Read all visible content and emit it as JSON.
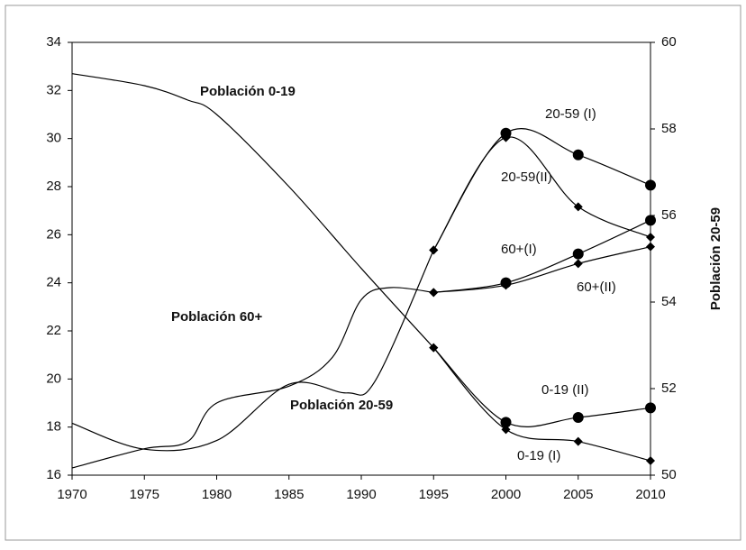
{
  "chart_data": {
    "type": "line",
    "y2label": "Población 20-59",
    "xlim": [
      1970,
      2010
    ],
    "xticks": [
      1970,
      1975,
      1980,
      1985,
      1990,
      1995,
      2000,
      2005,
      2010
    ],
    "ylim": [
      16,
      34
    ],
    "yticks": [
      16,
      18,
      20,
      22,
      24,
      26,
      28,
      30,
      32,
      34
    ],
    "y2lim": [
      50,
      60
    ],
    "y2ticks": [
      50,
      52,
      54,
      56,
      58,
      60
    ],
    "series": [
      {
        "name": "Población 0-19",
        "color": "#000000",
        "marker": null,
        "x": [
          1970,
          1975,
          1978,
          1980,
          1985,
          1990,
          1995
        ],
        "values": [
          32.7,
          32.2,
          31.6,
          31.0,
          28.0,
          24.6,
          21.3
        ]
      },
      {
        "name": "Población 60+",
        "color": "#000000",
        "marker": null,
        "x": [
          1970,
          1975,
          1978,
          1980,
          1985,
          1988,
          1990,
          1992,
          1995
        ],
        "values": [
          16.3,
          17.1,
          17.4,
          19.0,
          19.7,
          20.9,
          23.3,
          23.8,
          23.6
        ]
      },
      {
        "name": "Población 20-59",
        "color": "#000000",
        "marker": null,
        "axis": "y2",
        "x": [
          1970,
          1975,
          1980,
          1985,
          1989,
          1991,
          1995
        ],
        "values": [
          51.2,
          50.6,
          50.8,
          52.1,
          51.9,
          52.2,
          55.2
        ]
      },
      {
        "name": "20-59 (I)",
        "color": "#000000",
        "marker": "circle",
        "axis": "y2",
        "x": [
          1995,
          2000,
          2005,
          2010
        ],
        "values": [
          55.2,
          57.9,
          57.4,
          56.7
        ]
      },
      {
        "name": "20-59(II)",
        "color": "#000000",
        "marker": "diamond",
        "axis": "y2",
        "x": [
          1995,
          2000,
          2005,
          2010
        ],
        "values": [
          55.2,
          57.8,
          56.2,
          55.5
        ]
      },
      {
        "name": "60+(I)",
        "color": "#000000",
        "marker": "circle",
        "x": [
          1995,
          2000,
          2005,
          2010
        ],
        "values": [
          23.6,
          24.0,
          25.2,
          26.6
        ]
      },
      {
        "name": "60+(II)",
        "color": "#000000",
        "marker": "diamond",
        "x": [
          1995,
          2000,
          2005,
          2010
        ],
        "values": [
          23.6,
          23.9,
          24.8,
          25.5
        ]
      },
      {
        "name": "0-19 (II)",
        "color": "#000000",
        "marker": "circle",
        "x": [
          1995,
          2000,
          2005,
          2010
        ],
        "values": [
          21.3,
          18.2,
          18.4,
          18.8
        ]
      },
      {
        "name": "0-19 (I)",
        "color": "#000000",
        "marker": "diamond",
        "x": [
          1995,
          2000,
          2005,
          2010
        ],
        "values": [
          21.3,
          17.9,
          17.4,
          16.6
        ]
      }
    ]
  }
}
